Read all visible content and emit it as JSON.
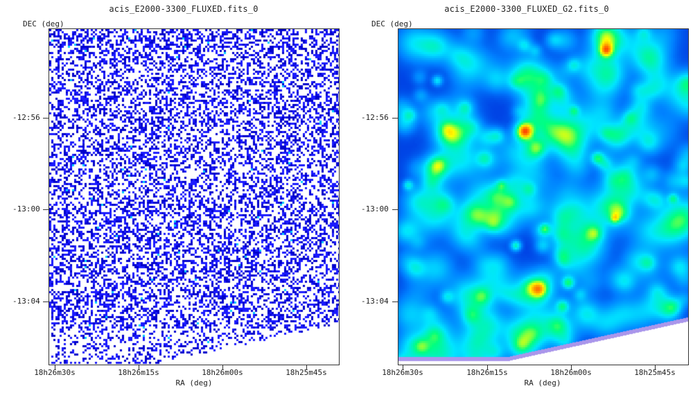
{
  "panels": [
    {
      "title": "acis_E2000-3300_FLUXED.fits_0",
      "ylabel": "DEC (deg)",
      "xlabel": "RA (deg)",
      "style": "sparse"
    },
    {
      "title": "acis_E2000-3300_FLUXED_G2.fits_0",
      "ylabel": "DEC (deg)",
      "xlabel": "RA (deg)",
      "style": "smoothed"
    }
  ],
  "chart_data": [
    {
      "type": "heatmap",
      "title": "acis_E2000-3300_FLUXED.fits_0",
      "xlabel": "RA (deg)",
      "ylabel": "DEC (deg)",
      "x_ticks": [
        "18h26m30s",
        "18h26m15s",
        "18h26m00s",
        "18h25m45s"
      ],
      "y_ticks": [
        "-12:56",
        "-13:00",
        "-13:04"
      ],
      "colors": [
        "#ffffff",
        "#1a1aff",
        "#0000cc",
        "#00ccff"
      ]
    },
    {
      "type": "heatmap",
      "title": "acis_E2000-3300_FLUXED_G2.fits_0",
      "xlabel": "RA (deg)",
      "ylabel": "DEC (deg)",
      "x_ticks": [
        "18h26m30s",
        "18h26m15s",
        "18h26m00s",
        "18h25m45s"
      ],
      "y_ticks": [
        "-12:56",
        "-13:00",
        "-13:04"
      ],
      "colors": [
        "#0000c8",
        "#0080ff",
        "#00e6ff",
        "#00ff80",
        "#ffff00",
        "#ff8000",
        "#ff0000",
        "#6a0000"
      ]
    }
  ]
}
